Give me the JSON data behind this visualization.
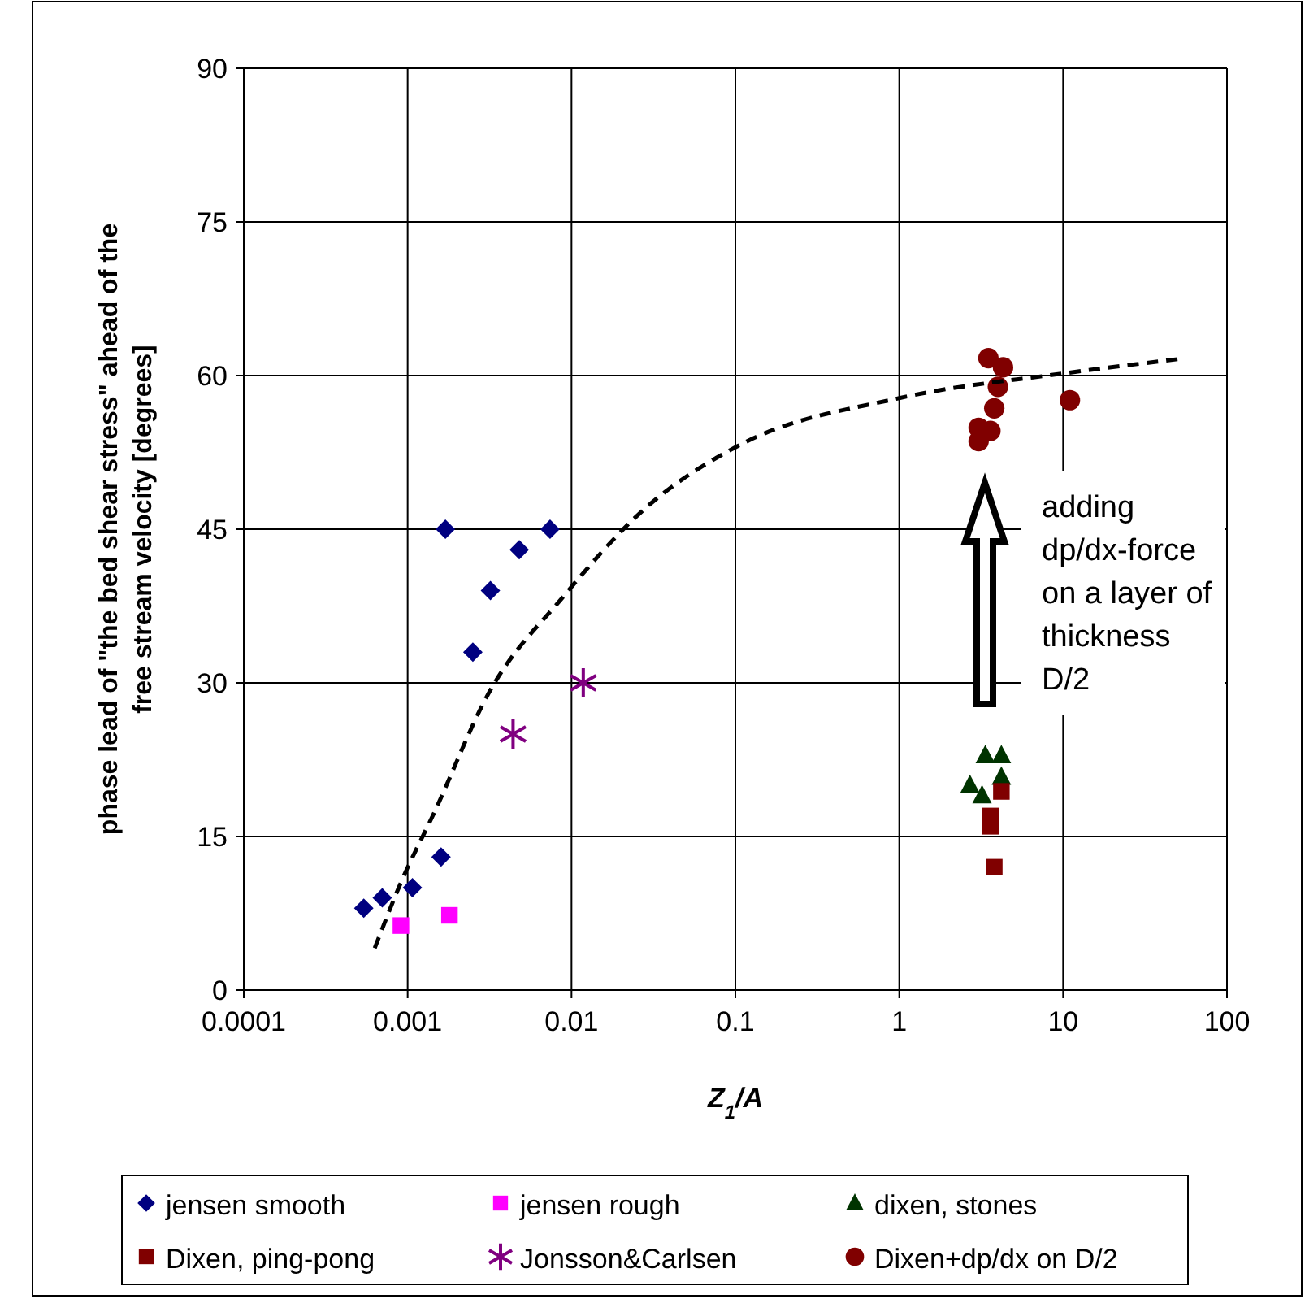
{
  "chart_data": {
    "type": "scatter",
    "xlabel": "Z$_{1}$/A",
    "ylabel": "phase lead of \"the bed shear stress\" ahead of the\nfree stream velocity  [degrees]",
    "log": "x",
    "grid": true,
    "legend": "bottom",
    "xlim": [
      0.0001,
      100
    ],
    "ylim": [
      0,
      90
    ],
    "xticks": [
      0.0001,
      0.001,
      0.01,
      0.1,
      1,
      10,
      100
    ],
    "yticks": [
      0,
      15,
      30,
      45,
      60,
      75,
      90
    ],
    "annotations": [
      "adding\ndp/dx-force\non a layer of\nthickness\nD/2"
    ],
    "series": [
      {
        "name": "jensen smooth",
        "color": "#000080",
        "marker": "diamond",
        "x": [
          0.00054,
          0.0007,
          0.00107,
          0.0016,
          0.0017,
          0.0025,
          0.0032,
          0.0048,
          0.0074
        ],
        "values": [
          8,
          9,
          10,
          13,
          45,
          33,
          39,
          43,
          45
        ]
      },
      {
        "name": "jensen rough",
        "color": "#ff00ff",
        "marker": "square",
        "x": [
          0.00091,
          0.0018
        ],
        "values": [
          6.3,
          7.3
        ]
      },
      {
        "name": "dixen, stones",
        "color": "#003300",
        "marker": "triangle",
        "x": [
          3.35,
          4.2,
          2.7,
          3.2,
          4.2
        ],
        "values": [
          22.9,
          22.9,
          20,
          19,
          20.8
        ]
      },
      {
        "name": "Dixen, ping-pong",
        "color": "#800000",
        "marker": "square",
        "x": [
          4.2,
          3.6,
          3.6,
          3.8
        ],
        "values": [
          19.4,
          17,
          16,
          12
        ]
      },
      {
        "name": "Jonsson&Carlsen",
        "color": "#800080",
        "marker": "cross",
        "x": [
          0.0044,
          0.0118
        ],
        "values": [
          25,
          30
        ]
      },
      {
        "name": "Dixen+dp/dx on D/2",
        "color": "#800000",
        "marker": "circle",
        "x": [
          3.5,
          4.3,
          4,
          3.8,
          3.05,
          3.05,
          3.6,
          11
        ],
        "values": [
          61.7,
          60.8,
          58.9,
          56.8,
          54.9,
          53.6,
          54.6,
          57.6
        ]
      },
      {
        "type": "line",
        "color": "#000000",
        "line_style": "dashed",
        "x": [
          0.00063,
          0.00091,
          0.00145,
          0.0031,
          0.0089,
          0.028,
          0.1,
          1,
          10,
          50
        ],
        "values": [
          4.1,
          10.5,
          17.3,
          28.9,
          38.4,
          47,
          53,
          57.8,
          60.2,
          61.6
        ]
      }
    ]
  }
}
